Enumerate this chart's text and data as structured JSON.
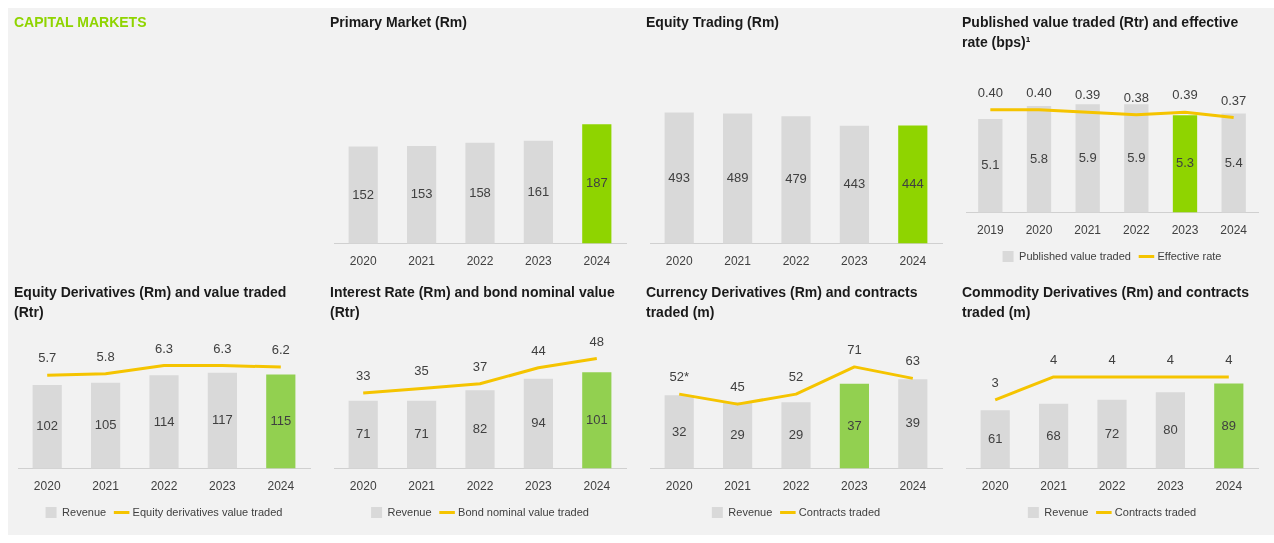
{
  "chart_data": [
    {
      "type": "other",
      "title": "CAPITAL MARKETS"
    },
    {
      "type": "bar",
      "title": "Primary Market (Rm)",
      "categories": [
        "2020",
        "2021",
        "2022",
        "2023",
        "2024"
      ],
      "tick_labels": "x",
      "data_labels": true,
      "grid": false,
      "legend": false,
      "series": [
        {
          "type": "bar",
          "color": "#d9d9d9",
          "colors": [
            "#d9d9d9",
            "#d9d9d9",
            "#d9d9d9",
            "#d9d9d9",
            "#8fd400"
          ],
          "values": [
            152,
            153,
            158,
            161,
            187
          ]
        }
      ]
    },
    {
      "type": "bar",
      "title": "Equity Trading (Rm)",
      "categories": [
        "2020",
        "2021",
        "2022",
        "2023",
        "2024"
      ],
      "tick_labels": "x",
      "data_labels": true,
      "grid": false,
      "legend": false,
      "series": [
        {
          "type": "bar",
          "color": "#d9d9d9",
          "colors": [
            "#d9d9d9",
            "#d9d9d9",
            "#d9d9d9",
            "#d9d9d9",
            "#8fd400"
          ],
          "values": [
            493,
            489,
            479,
            443,
            444
          ]
        }
      ]
    },
    {
      "type": "bar",
      "title": "Published value traded (Rtr) and effective rate (bps)¹",
      "categories": [
        "2019",
        "2020",
        "2021",
        "2022",
        "2023",
        "2024"
      ],
      "tick_labels": "x",
      "data_labels": true,
      "grid": false,
      "legend": "bottom",
      "series": [
        {
          "type": "bar",
          "name": "Published value traded",
          "color": "#d9d9d9",
          "colors": [
            "#d9d9d9",
            "#d9d9d9",
            "#d9d9d9",
            "#d9d9d9",
            "#8fd400",
            "#d9d9d9"
          ],
          "values": [
            5.1,
            5.8,
            5.9,
            5.9,
            5.3,
            5.4
          ]
        },
        {
          "type": "line",
          "name": "Effective rate",
          "axis": "y2",
          "color": "#f5c400",
          "values": [
            0.4,
            0.4,
            0.39,
            0.38,
            0.39,
            0.37
          ],
          "value_labels": [
            "0.40",
            "0.40",
            "0.39",
            "0.38",
            "0.39",
            "0.37"
          ]
        }
      ]
    },
    {
      "type": "bar",
      "title": "Equity Derivatives (Rm) and value traded (Rtr)",
      "categories": [
        "2020",
        "2021",
        "2022",
        "2023",
        "2024"
      ],
      "tick_labels": "x",
      "data_labels": true,
      "grid": false,
      "legend": "bottom",
      "series": [
        {
          "type": "bar",
          "name": "Revenue",
          "color": "#d9d9d9",
          "colors": [
            "#d9d9d9",
            "#d9d9d9",
            "#d9d9d9",
            "#d9d9d9",
            "#92d050"
          ],
          "values": [
            102,
            105,
            114,
            117,
            115
          ]
        },
        {
          "type": "line",
          "name": "Equity derivatives value traded",
          "axis": "y2",
          "color": "#f5c400",
          "values": [
            5.7,
            5.8,
            6.3,
            6.3,
            6.2
          ]
        }
      ]
    },
    {
      "type": "bar",
      "title": "Interest Rate (Rm) and bond nominal value (Rtr)",
      "categories": [
        "2020",
        "2021",
        "2022",
        "2023",
        "2024"
      ],
      "tick_labels": "x",
      "data_labels": true,
      "grid": false,
      "legend": "bottom",
      "series": [
        {
          "type": "bar",
          "name": "Revenue",
          "color": "#d9d9d9",
          "colors": [
            "#d9d9d9",
            "#d9d9d9",
            "#d9d9d9",
            "#d9d9d9",
            "#92d050"
          ],
          "values": [
            71,
            71,
            82,
            94,
            101
          ]
        },
        {
          "type": "line",
          "name": "Bond nominal value traded",
          "axis": "y2",
          "color": "#f5c400",
          "values": [
            33,
            35,
            37,
            44,
            48
          ]
        }
      ]
    },
    {
      "type": "bar",
      "title": "Currency Derivatives (Rm) and contracts traded (m)",
      "categories": [
        "2020",
        "2021",
        "2022",
        "2023",
        "2024"
      ],
      "tick_labels": "x",
      "data_labels": true,
      "grid": false,
      "legend": "bottom",
      "series": [
        {
          "type": "bar",
          "name": "Revenue",
          "color": "#d9d9d9",
          "colors": [
            "#d9d9d9",
            "#d9d9d9",
            "#d9d9d9",
            "#92d050",
            "#d9d9d9"
          ],
          "values": [
            32,
            29,
            29,
            37,
            39
          ]
        },
        {
          "type": "line",
          "name": "Contracts traded",
          "axis": "y2",
          "color": "#f5c400",
          "values": [
            52,
            45,
            52,
            71,
            63
          ],
          "value_labels": [
            "52*",
            "45",
            "52",
            "71",
            "63"
          ]
        }
      ]
    },
    {
      "type": "bar",
      "title": "Commodity Derivatives (Rm) and contracts traded (m)",
      "categories": [
        "2020",
        "2021",
        "2022",
        "2023",
        "2024"
      ],
      "tick_labels": "x",
      "data_labels": true,
      "grid": false,
      "legend": "bottom",
      "series": [
        {
          "type": "bar",
          "name": "Revenue",
          "color": "#d9d9d9",
          "colors": [
            "#d9d9d9",
            "#d9d9d9",
            "#d9d9d9",
            "#d9d9d9",
            "#92d050"
          ],
          "values": [
            61,
            68,
            72,
            80,
            89
          ]
        },
        {
          "type": "line",
          "name": "Contracts traded",
          "axis": "y2",
          "color": "#f5c400",
          "values": [
            3,
            4,
            4,
            4,
            4
          ]
        }
      ]
    }
  ]
}
